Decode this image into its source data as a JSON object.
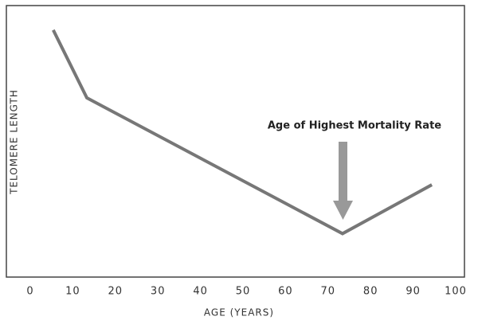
{
  "chart_data": {
    "type": "line",
    "x_label": "AGE (YEARS)",
    "y_label": "TELOMERE LENGTH",
    "annotation": "Age of Highest Mortality Rate",
    "series": [
      {
        "color": "#777777",
        "x": [
          5.4,
          13.3,
          73.4,
          94.4
        ],
        "values": [
          91,
          66,
          16,
          34
        ]
      }
    ],
    "xlim": [
      0,
      100
    ],
    "xticks": [
      0,
      10,
      20,
      30,
      40,
      50,
      60,
      70,
      80,
      90,
      100
    ],
    "ylim": [
      0,
      100
    ],
    "grid": false
  }
}
